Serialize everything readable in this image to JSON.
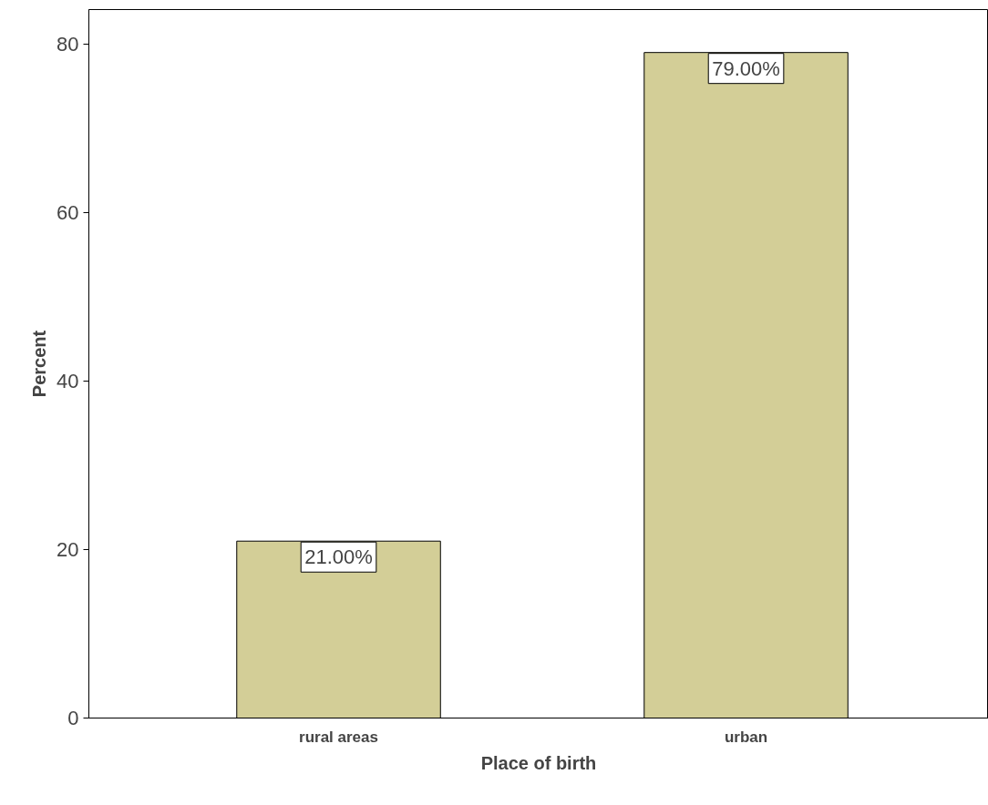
{
  "chart_data": {
    "type": "bar",
    "xlabel": "Place of birth",
    "ylabel": "Percent",
    "categories": [
      "rural areas",
      "urban"
    ],
    "values": [
      21,
      79
    ],
    "value_labels": [
      "21.00%",
      "79.00%"
    ],
    "color": "#d3ce97",
    "ylim": [
      0,
      84.1
    ],
    "yticks": [
      0,
      20,
      40,
      60,
      80
    ],
    "grid": false
  }
}
